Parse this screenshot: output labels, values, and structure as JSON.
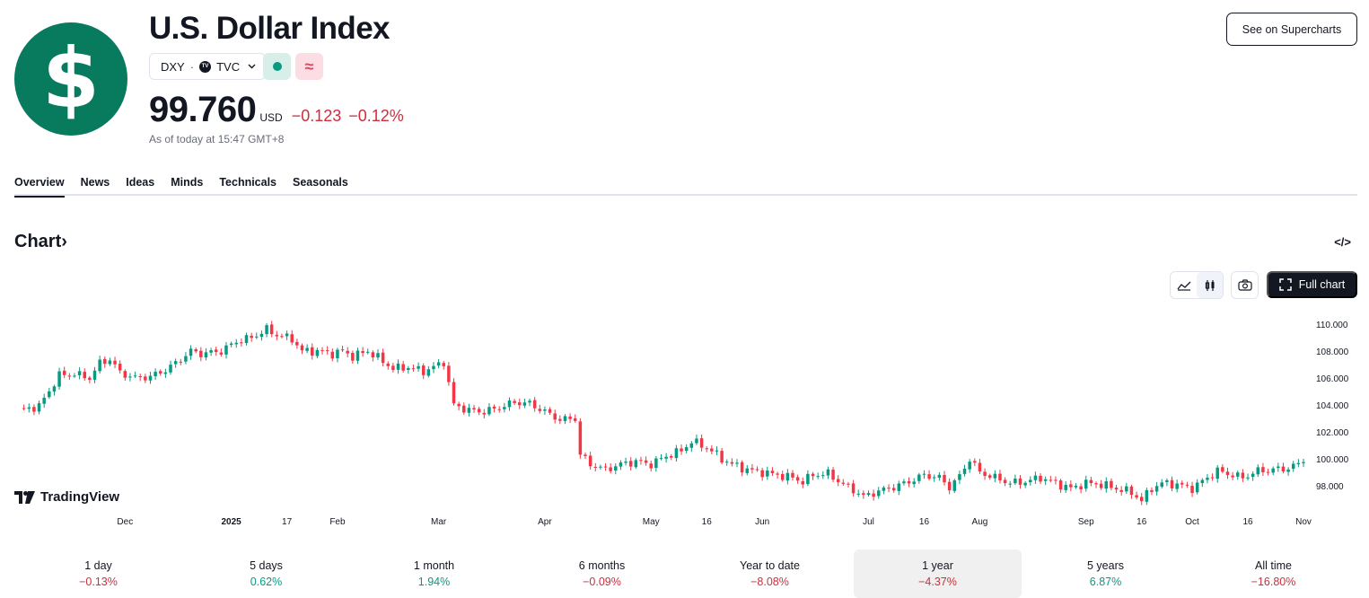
{
  "header": {
    "logo_glyph": "$",
    "title": "U.S. Dollar Index",
    "symbol": "DXY",
    "separator": "·",
    "exchange": "TVC",
    "exchange_badge": "TV",
    "approx_glyph": "≈",
    "price": "99.760",
    "currency": "USD",
    "change_abs": "−0.123",
    "change_pct": "−0.12%",
    "as_of": "As of today at 15:47 GMT+8",
    "supercharts_label": "See on Supercharts"
  },
  "tabs": [
    "Overview",
    "News",
    "Ideas",
    "Minds",
    "Technicals",
    "Seasonals"
  ],
  "active_tab": "Overview",
  "chart_section": {
    "heading": "Chart",
    "heading_arrow": "›",
    "embed_glyph": "</>",
    "full_chart_label": "Full chart",
    "brand": "TradingView"
  },
  "chart_data": {
    "type": "candlestick",
    "title": "U.S. Dollar Index (DXY) 1 year",
    "y_ticks": [
      "110.000",
      "108.000",
      "106.000",
      "104.000",
      "102.000",
      "100.000",
      "98.000"
    ],
    "y_tick_values": [
      110,
      108,
      106,
      104,
      102,
      100,
      98
    ],
    "ylim": [
      96.6,
      111.4
    ],
    "x_ticks": [
      {
        "label": "Dec",
        "index": 21,
        "bold": false
      },
      {
        "label": "2025",
        "index": 42,
        "bold": true
      },
      {
        "label": "17",
        "index": 53,
        "bold": false
      },
      {
        "label": "Feb",
        "index": 63,
        "bold": false
      },
      {
        "label": "Mar",
        "index": 83,
        "bold": false
      },
      {
        "label": "Apr",
        "index": 104,
        "bold": false
      },
      {
        "label": "May",
        "index": 125,
        "bold": false
      },
      {
        "label": "16",
        "index": 136,
        "bold": false
      },
      {
        "label": "Jun",
        "index": 147,
        "bold": false
      },
      {
        "label": "Jul",
        "index": 168,
        "bold": false
      },
      {
        "label": "16",
        "index": 179,
        "bold": false
      },
      {
        "label": "Aug",
        "index": 190,
        "bold": false
      },
      {
        "label": "Sep",
        "index": 211,
        "bold": false
      },
      {
        "label": "16",
        "index": 222,
        "bold": false
      },
      {
        "label": "Oct",
        "index": 232,
        "bold": false
      },
      {
        "label": "16",
        "index": 243,
        "bold": false
      },
      {
        "label": "Nov",
        "index": 254,
        "bold": false
      }
    ],
    "anchors": [
      [
        0,
        103.6
      ],
      [
        4,
        103.9
      ],
      [
        8,
        106.2
      ],
      [
        11,
        106.3
      ],
      [
        14,
        106.0
      ],
      [
        16,
        107.1
      ],
      [
        18,
        107.4
      ],
      [
        20,
        106.4
      ],
      [
        23,
        106.0
      ],
      [
        26,
        106.1
      ],
      [
        29,
        106.6
      ],
      [
        31,
        107.1
      ],
      [
        34,
        108.0
      ],
      [
        36,
        107.8
      ],
      [
        40,
        108.0
      ],
      [
        43,
        108.7
      ],
      [
        46,
        109.0
      ],
      [
        49,
        109.6
      ],
      [
        51,
        109.2
      ],
      [
        54,
        108.9
      ],
      [
        56,
        108.0
      ],
      [
        59,
        108.0
      ],
      [
        62,
        107.8
      ],
      [
        64,
        108.0
      ],
      [
        66,
        107.6
      ],
      [
        69,
        108.0
      ],
      [
        71,
        107.5
      ],
      [
        74,
        106.7
      ],
      [
        77,
        106.8
      ],
      [
        80,
        106.5
      ],
      [
        82,
        106.8
      ],
      [
        84,
        107.2
      ],
      [
        86,
        104.0
      ],
      [
        89,
        103.6
      ],
      [
        92,
        103.5
      ],
      [
        95,
        103.8
      ],
      [
        98,
        104.2
      ],
      [
        101,
        104.1
      ],
      [
        104,
        103.5
      ],
      [
        107,
        102.9
      ],
      [
        110,
        103.0
      ],
      [
        111,
        100.3
      ],
      [
        113,
        99.6
      ],
      [
        116,
        99.2
      ],
      [
        119,
        99.6
      ],
      [
        122,
        99.8
      ],
      [
        125,
        99.6
      ],
      [
        128,
        100.2
      ],
      [
        131,
        100.6
      ],
      [
        133,
        101.3
      ],
      [
        135,
        101.0
      ],
      [
        137,
        100.6
      ],
      [
        139,
        100.0
      ],
      [
        141,
        99.6
      ],
      [
        144,
        99.2
      ],
      [
        147,
        99.0
      ],
      [
        150,
        98.8
      ],
      [
        153,
        98.6
      ],
      [
        155,
        98.3
      ],
      [
        157,
        98.8
      ],
      [
        160,
        98.9
      ],
      [
        163,
        98.1
      ],
      [
        165,
        97.7
      ],
      [
        167,
        97.2
      ],
      [
        170,
        97.6
      ],
      [
        173,
        97.9
      ],
      [
        176,
        98.3
      ],
      [
        179,
        98.8
      ],
      [
        182,
        98.6
      ],
      [
        184,
        97.9
      ],
      [
        186,
        98.7
      ],
      [
        188,
        100.0
      ],
      [
        190,
        99.0
      ],
      [
        193,
        98.6
      ],
      [
        196,
        98.2
      ],
      [
        199,
        98.3
      ],
      [
        202,
        98.6
      ],
      [
        205,
        98.2
      ],
      [
        208,
        97.8
      ],
      [
        211,
        98.2
      ],
      [
        214,
        98.1
      ],
      [
        217,
        97.8
      ],
      [
        220,
        97.5
      ],
      [
        222,
        96.9
      ],
      [
        224,
        97.8
      ],
      [
        226,
        98.2
      ],
      [
        229,
        98.1
      ],
      [
        232,
        97.8
      ],
      [
        235,
        98.6
      ],
      [
        237,
        99.1
      ],
      [
        240,
        98.8
      ],
      [
        242,
        98.6
      ],
      [
        245,
        99.1
      ],
      [
        248,
        99.2
      ],
      [
        251,
        99.3
      ],
      [
        254,
        99.76
      ]
    ],
    "n_candles": 255
  },
  "periods": [
    {
      "label": "1 day",
      "value": "−0.13%",
      "sign": "neg"
    },
    {
      "label": "5 days",
      "value": "0.62%",
      "sign": "pos"
    },
    {
      "label": "1 month",
      "value": "1.94%",
      "sign": "pos"
    },
    {
      "label": "6 months",
      "value": "−0.09%",
      "sign": "neg"
    },
    {
      "label": "Year to date",
      "value": "−8.08%",
      "sign": "neg"
    },
    {
      "label": "1 year",
      "value": "−4.37%",
      "sign": "neg"
    },
    {
      "label": "5 years",
      "value": "6.87%",
      "sign": "pos"
    },
    {
      "label": "All time",
      "value": "−16.80%",
      "sign": "neg"
    }
  ],
  "active_period": "1 year",
  "colors": {
    "up": "#089981",
    "down": "#f23645",
    "negative_text": "#cc2f3c",
    "logo_bg": "#087a5e"
  }
}
